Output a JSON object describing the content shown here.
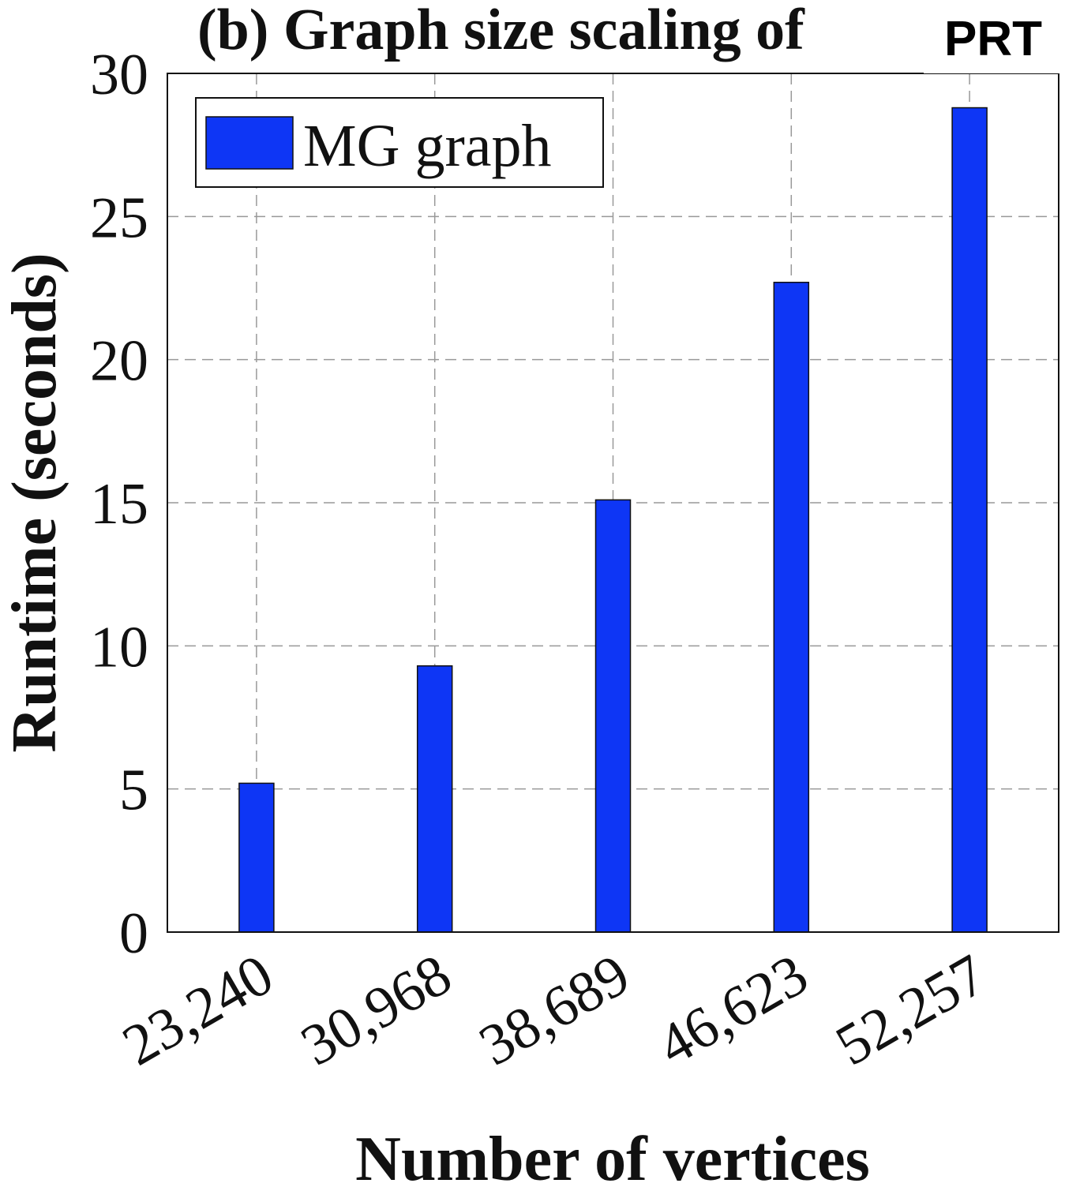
{
  "chart_data": {
    "type": "bar",
    "title": "(b) Graph size scaling of",
    "title_overlay": "PRT",
    "xlabel": "Number of vertices",
    "ylabel": "Runtime (seconds)",
    "categories": [
      "23,240",
      "30,968",
      "38,689",
      "46,623",
      "52,257"
    ],
    "series": [
      {
        "name": "MG graph",
        "values": [
          5.2,
          9.3,
          15.1,
          22.7,
          28.8
        ],
        "color": "#0e36f5"
      }
    ],
    "ylim": [
      0,
      30
    ],
    "yticks": [
      "0",
      "5",
      "10",
      "15",
      "20",
      "25",
      "30"
    ],
    "grid": true,
    "legend_position": "top-left"
  }
}
